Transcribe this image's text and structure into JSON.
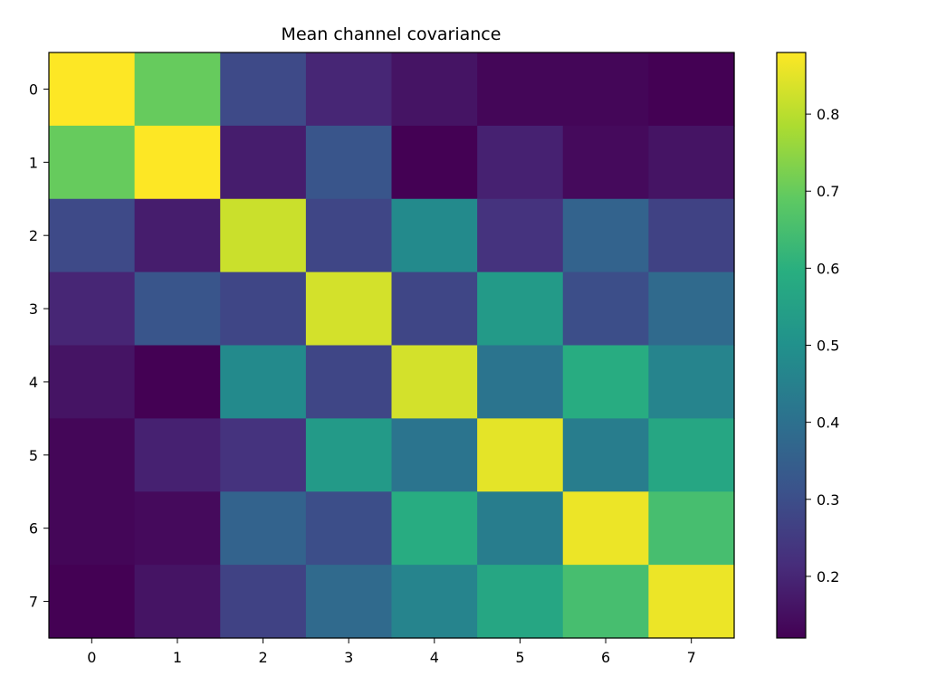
{
  "chart_data": {
    "type": "heatmap",
    "title": "Mean channel covariance",
    "xlabel": "",
    "ylabel": "",
    "x_categories": [
      "0",
      "1",
      "2",
      "3",
      "4",
      "5",
      "6",
      "7"
    ],
    "y_categories": [
      "0",
      "1",
      "2",
      "3",
      "4",
      "5",
      "6",
      "7"
    ],
    "values": [
      [
        0.88,
        0.7,
        0.29,
        0.2,
        0.16,
        0.13,
        0.13,
        0.12
      ],
      [
        0.7,
        0.88,
        0.18,
        0.32,
        0.12,
        0.19,
        0.14,
        0.16
      ],
      [
        0.29,
        0.18,
        0.82,
        0.28,
        0.48,
        0.23,
        0.36,
        0.27
      ],
      [
        0.2,
        0.32,
        0.28,
        0.83,
        0.28,
        0.53,
        0.3,
        0.38
      ],
      [
        0.16,
        0.12,
        0.48,
        0.28,
        0.83,
        0.41,
        0.59,
        0.46
      ],
      [
        0.13,
        0.19,
        0.23,
        0.53,
        0.41,
        0.85,
        0.44,
        0.57
      ],
      [
        0.13,
        0.14,
        0.36,
        0.3,
        0.59,
        0.44,
        0.86,
        0.65
      ],
      [
        0.12,
        0.16,
        0.27,
        0.38,
        0.46,
        0.57,
        0.65,
        0.86
      ]
    ],
    "vmin": 0.12,
    "vmax": 0.88,
    "colormap": "viridis",
    "colorbar": {
      "ticks": [
        0.2,
        0.3,
        0.4,
        0.5,
        0.6,
        0.7,
        0.8
      ],
      "tick_labels": [
        "0.2",
        "0.3",
        "0.4",
        "0.5",
        "0.6",
        "0.7",
        "0.8"
      ],
      "placement": "right"
    },
    "grid": false
  }
}
